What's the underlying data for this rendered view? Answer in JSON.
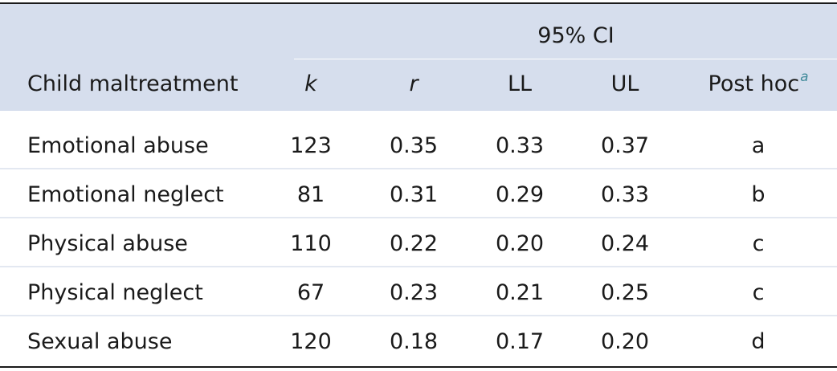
{
  "table": {
    "ci_header": "95% CI",
    "columns": {
      "child_maltreatment": "Child maltreatment",
      "k": "k",
      "r": "r",
      "ll": "LL",
      "ul": "UL",
      "post_hoc": "Post hoc",
      "post_hoc_footnote": "a"
    },
    "rows": [
      {
        "label": "Emotional abuse",
        "k": "123",
        "r": "0.35",
        "ll": "0.33",
        "ul": "0.37",
        "post_hoc": "a"
      },
      {
        "label": "Emotional neglect",
        "k": "81",
        "r": "0.31",
        "ll": "0.29",
        "ul": "0.33",
        "post_hoc": "b"
      },
      {
        "label": "Physical abuse",
        "k": "110",
        "r": "0.22",
        "ll": "0.20",
        "ul": "0.24",
        "post_hoc": "c"
      },
      {
        "label": "Physical neglect",
        "k": "67",
        "r": "0.23",
        "ll": "0.21",
        "ul": "0.25",
        "post_hoc": "c"
      },
      {
        "label": "Sexual abuse",
        "k": "120",
        "r": "0.18",
        "ll": "0.17",
        "ul": "0.20",
        "post_hoc": "d"
      }
    ],
    "colors": {
      "header_background": "#d6deed",
      "footnote_marker": "#3f8a9a"
    }
  }
}
